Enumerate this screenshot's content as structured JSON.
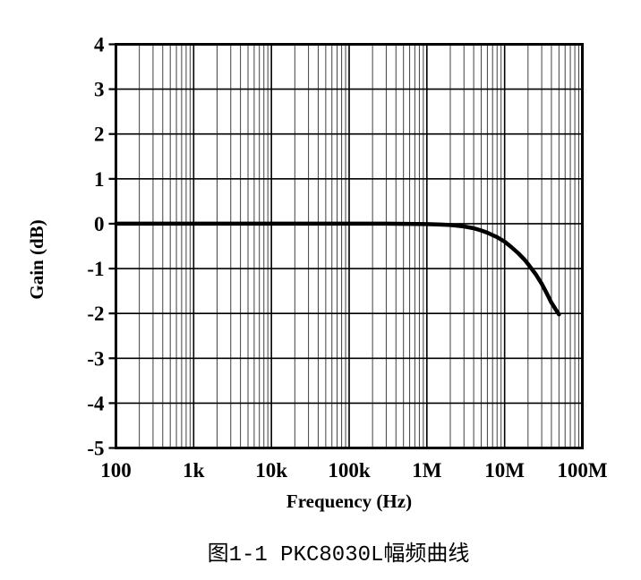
{
  "figure": {
    "caption": "图1-1 PKC8030L幅频曲线"
  },
  "chart_data": {
    "type": "line",
    "title": "",
    "xlabel": "Frequency (Hz)",
    "ylabel": "Gain (dB)",
    "x_scale": "log",
    "grid": "major and log-minor gridlines, full box border",
    "legend": "none",
    "x_range": [
      100,
      100000000
    ],
    "y_range": [
      -5,
      4
    ],
    "x_tick_values": [
      100,
      1000,
      10000,
      100000,
      1000000,
      10000000,
      100000000
    ],
    "x_tick_labels": [
      "100",
      "1k",
      "10k",
      "100k",
      "1M",
      "10M",
      "100M"
    ],
    "y_tick_values": [
      4,
      3,
      2,
      1,
      0,
      -1,
      -2,
      -3,
      -4,
      -5
    ],
    "y_tick_labels": [
      "4",
      "3",
      "2",
      "1",
      "0",
      "-1",
      "-2",
      "-3",
      "-4",
      "-5"
    ],
    "colors": {
      "curve": "#000000",
      "major_grid": "#000000",
      "minor_grid": "#404040",
      "border": "#000000",
      "background": "#ffffff"
    },
    "series": [
      {
        "name": "PKC8030L gain vs frequency",
        "points": [
          [
            100,
            0
          ],
          [
            300,
            0
          ],
          [
            1000,
            0
          ],
          [
            3000,
            0
          ],
          [
            10000,
            0
          ],
          [
            30000,
            0
          ],
          [
            100000,
            0
          ],
          [
            300000,
            0
          ],
          [
            1000000,
            -0.01
          ],
          [
            1500000,
            -0.02
          ],
          [
            2000000,
            -0.03
          ],
          [
            3000000,
            -0.06
          ],
          [
            4000000,
            -0.1
          ],
          [
            5000000,
            -0.15
          ],
          [
            6000000,
            -0.2
          ],
          [
            8000000,
            -0.3
          ],
          [
            10000000,
            -0.4
          ],
          [
            12000000,
            -0.51
          ],
          [
            15000000,
            -0.66
          ],
          [
            18000000,
            -0.8
          ],
          [
            20000000,
            -0.9
          ],
          [
            25000000,
            -1.12
          ],
          [
            30000000,
            -1.34
          ],
          [
            35000000,
            -1.56
          ],
          [
            40000000,
            -1.76
          ],
          [
            45000000,
            -1.9
          ],
          [
            50000000,
            -2.02
          ]
        ]
      }
    ],
    "notable_readings": {
      "flat_gain_db": 0,
      "gain_at_end_db": -2.0,
      "end_frequency_hz": 50000000
    }
  }
}
